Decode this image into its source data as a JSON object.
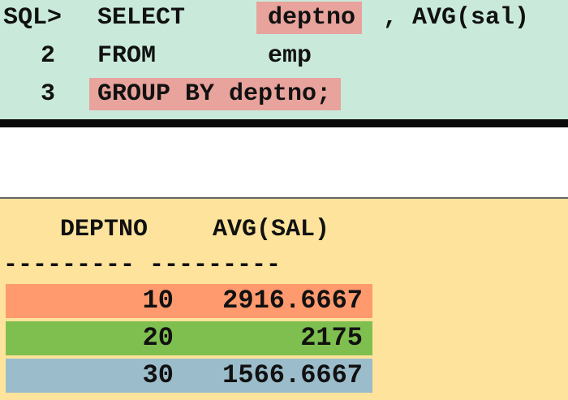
{
  "sql": {
    "prompt": "SQL>",
    "lines": [
      {
        "num": "",
        "keyword": "SELECT",
        "arg1": "deptno",
        "arg2": ", AVG(sal)"
      },
      {
        "num": "2",
        "keyword": "FROM",
        "arg1": "emp"
      },
      {
        "num": "3",
        "clause": "GROUP BY deptno;"
      }
    ]
  },
  "result": {
    "headers": [
      "DEPTNO",
      "AVG(SAL)"
    ],
    "separator": "--------- ---------",
    "rows": [
      {
        "deptno": "10",
        "avg_sal": "2916.6667",
        "color": "#ff9a6e"
      },
      {
        "deptno": "20",
        "avg_sal": "2175",
        "color": "#7fbf4f"
      },
      {
        "deptno": "30",
        "avg_sal": "1566.6667",
        "color": "#9bbccb"
      }
    ]
  },
  "colors": {
    "sql_bg": "#c9eadb",
    "highlight": "#e8a39c",
    "result_bg": "#fde39b"
  }
}
